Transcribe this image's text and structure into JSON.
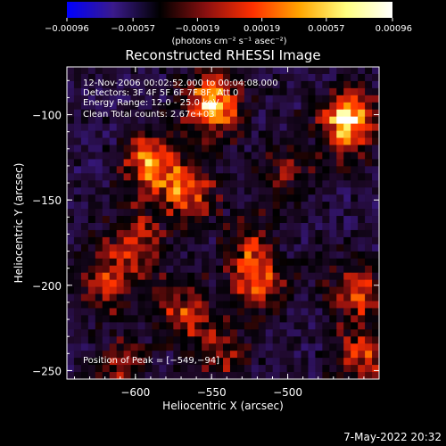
{
  "chart_data": {
    "type": "heatmap",
    "title": "Reconstructed RHESSI Image",
    "xlabel": "Heliocentric X (arcsec)",
    "ylabel": "Heliocentric Y (arcsec)",
    "xlim": [
      -645,
      -440
    ],
    "ylim": [
      -255,
      -72
    ],
    "xticks": [
      -600,
      -550,
      -500
    ],
    "xtick_labels": [
      "−600",
      "−550",
      "−500"
    ],
    "yticks": [
      -100,
      -150,
      -200,
      -250
    ],
    "ytick_labels": [
      "−100",
      "−150",
      "−200",
      "−250"
    ],
    "colorbar": {
      "min": -0.00096,
      "max": 0.00096,
      "tick_labels": [
        "−0.00096",
        "−0.00057",
        "−0.00019",
        "0.00019",
        "0.00057",
        "0.00096"
      ],
      "unit_label": "(photons cm⁻² s⁻¹ asec⁻²)",
      "colors": [
        "#0000ff",
        "#3a1a8a",
        "#000000",
        "#8b1010",
        "#ff3000",
        "#ffa500",
        "#ffff80",
        "#ffffff"
      ]
    },
    "annotations": [
      "12-Nov-2006 00:02:52.000 to 00:04:08.000",
      "Detectors: 3F 4F 5F 6F 7F 8F, Att 0",
      "Energy Range: 12.0 - 25.0 keV",
      "Clean     Total counts: 2.67e+03"
    ],
    "peak_label": "Position of Peak = [−549,−94]",
    "peak": [
      -549,
      -94
    ],
    "hotspots": [
      {
        "x": -460,
        "y": -105,
        "amp": 1.0
      },
      {
        "x": -549,
        "y": -94,
        "amp": 0.95
      },
      {
        "x": -590,
        "y": -130,
        "amp": 0.75
      },
      {
        "x": -565,
        "y": -145,
        "amp": 0.6
      },
      {
        "x": -520,
        "y": -200,
        "amp": 0.6
      },
      {
        "x": -600,
        "y": -175,
        "amp": 0.55
      },
      {
        "x": -570,
        "y": -215,
        "amp": 0.55
      },
      {
        "x": -620,
        "y": -200,
        "amp": 0.5
      },
      {
        "x": -455,
        "y": -205,
        "amp": 0.55
      },
      {
        "x": -450,
        "y": -245,
        "amp": 0.6
      },
      {
        "x": -610,
        "y": -250,
        "amp": 0.45
      },
      {
        "x": -500,
        "y": -135,
        "amp": 0.35
      },
      {
        "x": -525,
        "y": -175,
        "amp": 0.4
      },
      {
        "x": -545,
        "y": -240,
        "amp": 0.4
      }
    ]
  },
  "footer": {
    "date": "7-May-2022 20:32"
  }
}
